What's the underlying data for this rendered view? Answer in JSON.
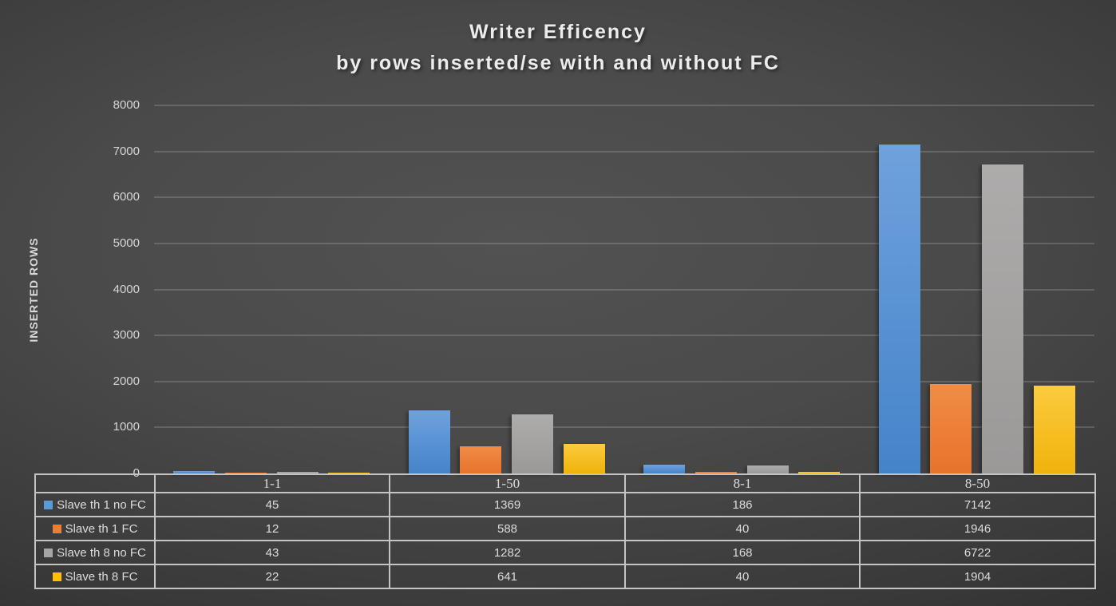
{
  "background": {
    "center_color": "#525252",
    "edge_color": "#232323"
  },
  "chart_data": {
    "type": "bar",
    "title": "Writer Efficency",
    "subtitle": "by rows inserted/se with and without FC",
    "ylabel": "INSERTED ROWS",
    "xlabel": "",
    "ylim": [
      0,
      8000
    ],
    "ytick_step": 1000,
    "yticks": [
      0,
      1000,
      2000,
      3000,
      4000,
      5000,
      6000,
      7000,
      8000
    ],
    "grid": true,
    "legend_position": "data-table-left",
    "categories": [
      "1-1",
      "1-50",
      "8-1",
      "8-50"
    ],
    "series": [
      {
        "name": "Slave th 1 no FC",
        "color": "#5B9BD5",
        "gradient_top": "#6FA2DD",
        "gradient_bottom": "#4583C9",
        "values": [
          45,
          1369,
          186,
          7142
        ]
      },
      {
        "name": "Slave th 1 FC",
        "color": "#ED7D31",
        "gradient_top": "#F08C47",
        "gradient_bottom": "#E8732A",
        "values": [
          12,
          588,
          40,
          1946
        ]
      },
      {
        "name": "Slave th 8 no FC",
        "color": "#A5A5A5",
        "gradient_top": "#AEACAB",
        "gradient_bottom": "#9B9998",
        "values": [
          43,
          1282,
          168,
          6722
        ]
      },
      {
        "name": "Slave th 8 FC",
        "color": "#FFC000",
        "gradient_top": "#FCCB3E",
        "gradient_bottom": "#EFB30A",
        "values": [
          22,
          641,
          40,
          1904
        ]
      }
    ],
    "gridline_color": "rgba(255,255,255,0.16)",
    "axis_text_color": "#D6D6D6",
    "table_border_color": "#C4C4C4"
  }
}
